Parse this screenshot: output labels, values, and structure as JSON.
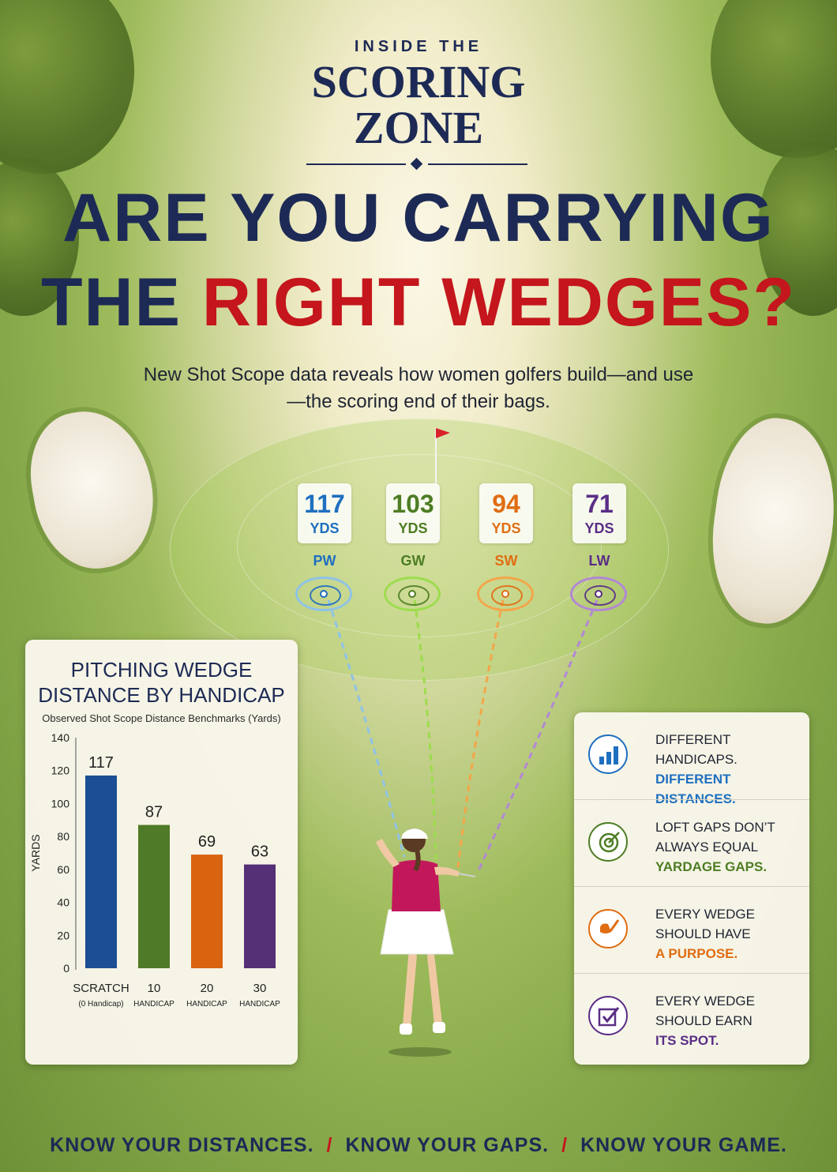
{
  "header": {
    "kicker": "INSIDE THE",
    "logo_line1": "SCORING",
    "logo_line2": "ZONE",
    "headline_line1": "ARE YOU CARRYING",
    "headline_line2_a": "THE ",
    "headline_line2_b": "RIGHT WEDGES?",
    "subhead": "New Shot Scope data reveals how women golfers build—and use—the scoring end of their bags."
  },
  "wedges": [
    {
      "distance": "117",
      "unit": "YDS",
      "club": "PW",
      "color": "#1f6fc0"
    },
    {
      "distance": "103",
      "unit": "YDS",
      "club": "GW",
      "color": "#4e7d24"
    },
    {
      "distance": "94",
      "unit": "YDS",
      "club": "SW",
      "color": "#e06d12"
    },
    {
      "distance": "71",
      "unit": "YDS",
      "club": "LW",
      "color": "#5a2d86"
    }
  ],
  "chart_data": {
    "type": "bar",
    "title": "PITCHING WEDGE DISTANCE BY HANDICAP",
    "subtitle": "Observed Shot Scope Distance Benchmarks (Yards)",
    "ylabel": "YARDS",
    "xlabel": "",
    "ylim": [
      0,
      140
    ],
    "yticks": [
      0,
      20,
      40,
      60,
      80,
      100,
      120,
      140
    ],
    "categories": [
      {
        "main": "SCRATCH",
        "sub": "(0 Handicap)"
      },
      {
        "main": "10",
        "sub": "HANDICAP"
      },
      {
        "main": "20",
        "sub": "HANDICAP"
      },
      {
        "main": "30",
        "sub": "HANDICAP"
      }
    ],
    "values": [
      117,
      87,
      69,
      63
    ],
    "colors": [
      "#1b4e94",
      "#4f7a27",
      "#d9630f",
      "#553077"
    ],
    "grid": false
  },
  "insights": [
    {
      "line": "DIFFERENT HANDICAPS.",
      "highlight": "DIFFERENT DISTANCES.",
      "color": "#1f6fc0",
      "icon": "bar-chart-icon"
    },
    {
      "line": "LOFT GAPS DON’T ALWAYS EQUAL",
      "highlight": "YARDAGE GAPS.",
      "color": "#4e7d24",
      "icon": "target-icon"
    },
    {
      "line": "EVERY WEDGE SHOULD HAVE",
      "highlight": "A PURPOSE.",
      "color": "#e06d12",
      "icon": "wedge-club-icon"
    },
    {
      "line": "EVERY WEDGE SHOULD EARN",
      "highlight": "ITS SPOT.",
      "color": "#5a2d86",
      "icon": "checkbox-icon"
    }
  ],
  "footer": {
    "part1": "KNOW YOUR DISTANCES.",
    "part2": "KNOW YOUR GAPS.",
    "part3": "KNOW YOUR GAME.",
    "separator": "/"
  }
}
